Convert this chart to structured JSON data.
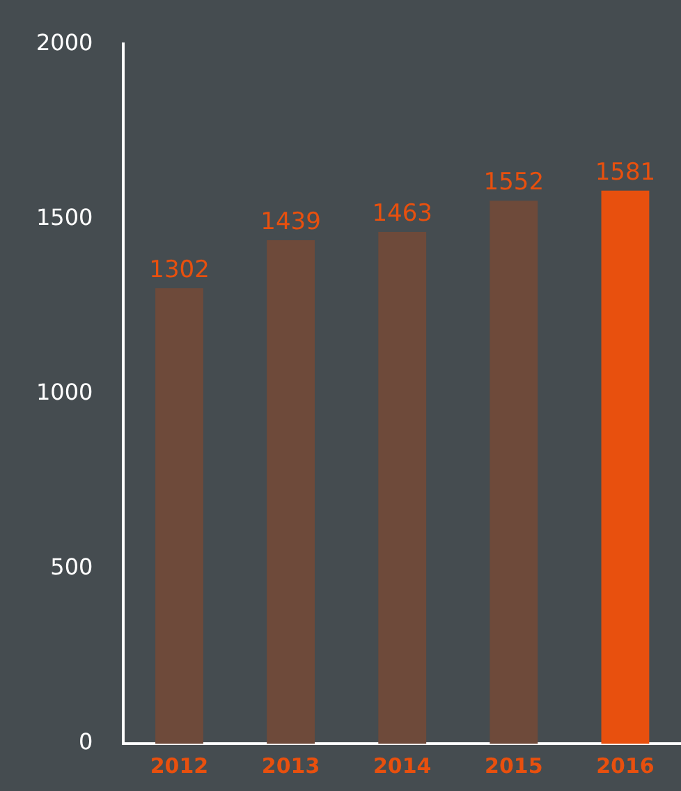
{
  "chart_data": {
    "type": "bar",
    "categories": [
      "2012",
      "2013",
      "2014",
      "2015",
      "2016"
    ],
    "values": [
      1302,
      1439,
      1463,
      1552,
      1581
    ],
    "colors": [
      "#6e4a3a",
      "#6e4a3a",
      "#6e4a3a",
      "#6e4a3a",
      "#e8500e"
    ],
    "ylim": [
      0,
      2000
    ],
    "yticks": [
      0,
      500,
      1000,
      1500,
      2000
    ],
    "grid": false,
    "legend": false,
    "data_labels": true
  }
}
